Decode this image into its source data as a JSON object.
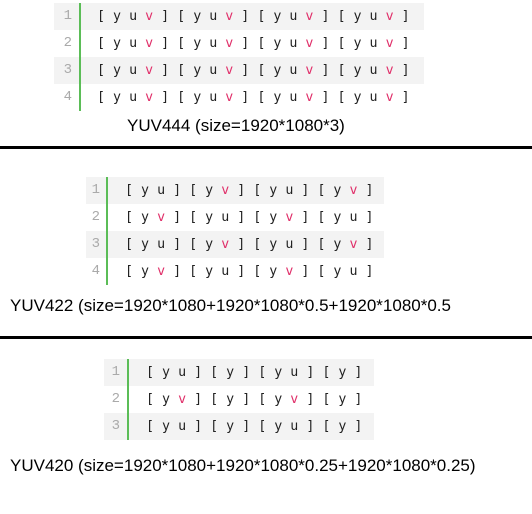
{
  "blocks": [
    {
      "id": "yuv444",
      "lines": [
        {
          "num": "1",
          "text": "[ y u v ] [ y u v ] [ y u v ] [ y u v ]"
        },
        {
          "num": "2",
          "text": "[ y u v ] [ y u v ] [ y u v ] [ y u v ]"
        },
        {
          "num": "3",
          "text": "[ y u v ] [ y u v ] [ y u v ] [ y u v ]"
        },
        {
          "num": "4",
          "text": "[ y u v ] [ y u v ] [ y u v ] [ y u v ]"
        }
      ],
      "caption": "YUV444  (size=1920*1080*3)"
    },
    {
      "id": "yuv422",
      "lines": [
        {
          "num": "1",
          "text": "[ y u ] [ y v ] [ y u ] [ y v ]"
        },
        {
          "num": "2",
          "text": "[ y v ] [ y u ] [ y v ] [ y u ]"
        },
        {
          "num": "3",
          "text": "[ y u ] [ y v ] [ y u ] [ y v ]"
        },
        {
          "num": "4",
          "text": "[ y v ] [ y u ] [ y v ] [ y u ]"
        }
      ],
      "caption": "YUV422  (size=1920*1080+1920*1080*0.5+1920*1080*0.5"
    },
    {
      "id": "yuv420",
      "lines": [
        {
          "num": "1",
          "text": "[ y u ] [ y ] [ y u ] [ y ]"
        },
        {
          "num": "2",
          "text": "[ y v ] [ y ] [ y v ] [ y ]"
        },
        {
          "num": "3",
          "text": "[ y u ] [ y ] [ y u ] [ y ]"
        }
      ],
      "caption": "YUV420  (size=1920*1080+1920*1080*0.25+1920*1080*0.25)"
    }
  ],
  "colors": {
    "v_highlight": "#e0306a",
    "gutter_bar": "#5bbd57",
    "shaded_line": "#f3f3f3",
    "separator": "#000000"
  }
}
